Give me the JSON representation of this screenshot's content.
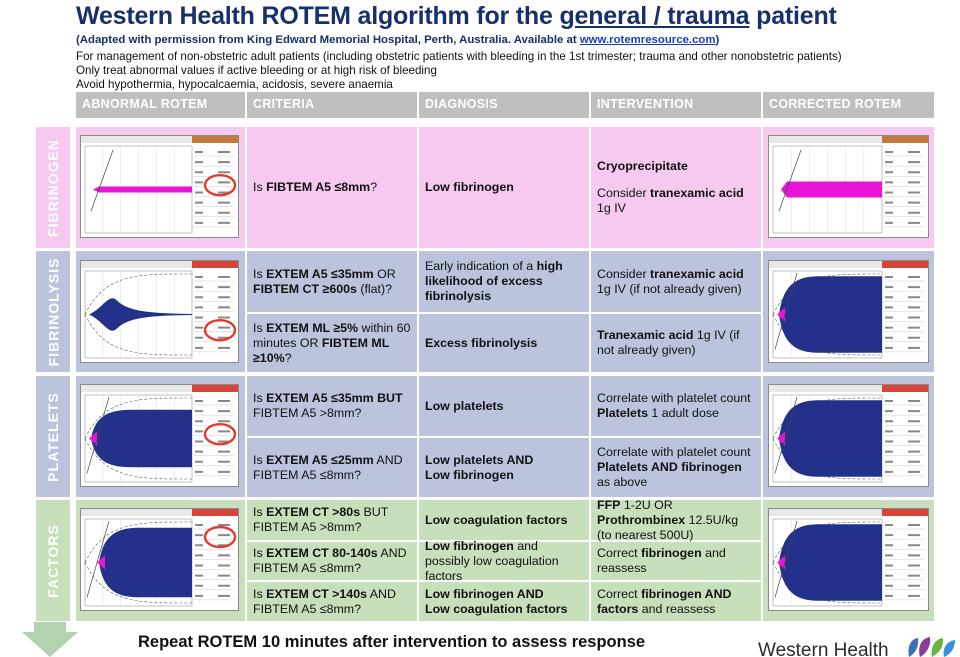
{
  "header": {
    "title_pre": "Western Health ROTEM algorithm for the ",
    "title_link": "general / trauma",
    "title_post": " patient",
    "subtitle_text": "(Adapted with permission from King Edward Memorial Hospital, Perth, Australia. Available at ",
    "subtitle_link": "www.rotemresource.com",
    "subtitle_close": ")",
    "notes": [
      "For management of non-obstetric adult patients (including obstetric patients with bleeding in the 1st trimester; trauma and other nonobstetric patients)",
      "Only treat abnormal values if active bleeding or at high risk of bleeding",
      "Avoid hypothermia, hypocalcaemia, acidosis, severe anaemia"
    ]
  },
  "columns": [
    "ABNORMAL ROTEM",
    "CRITERIA",
    "DIAGNOSIS",
    "INTERVENTION",
    "CORRECTED ROTEM"
  ],
  "sections": {
    "fibrinogen": {
      "label": "FIBRINOGEN",
      "rows": [
        {
          "criteria": [
            "Is ",
            "FIBTEM A5 ≤8mm",
            "?"
          ],
          "diagnosis": [
            "Low fibrinogen"
          ],
          "intervention_1": "Cryoprecipitate",
          "intervention_2": [
            "Consider ",
            "tranexamic acid",
            " 1g IV"
          ]
        }
      ]
    },
    "fibrinolysis": {
      "label": "FIBRINOLYSIS",
      "rows": [
        {
          "criteria": [
            "Is ",
            "EXTEM A5 ≤35mm",
            " OR ",
            "FIBTEM CT ≥600s",
            " (flat)?"
          ],
          "diagnosis": [
            "Early indication of a ",
            "high likelihood of excess fibrinolysis"
          ],
          "intervention": [
            "Consider ",
            "tranexamic acid",
            " 1g IV (if not already given)"
          ]
        },
        {
          "criteria": [
            "Is ",
            "EXTEM ML ≥5%",
            " within 60 minutes OR ",
            "FIBTEM ML ≥10%",
            "?"
          ],
          "diagnosis": [
            "Excess fibrinolysis"
          ],
          "intervention": [
            "Tranexamic acid",
            " 1g IV (if not already given)"
          ]
        }
      ]
    },
    "platelets": {
      "label": "PLATELETS",
      "rows": [
        {
          "criteria": [
            "Is ",
            "EXTEM A5 ≤35mm BUT",
            " FIBTEM A5 >8mm?"
          ],
          "diagnosis": [
            "Low platelets"
          ],
          "intervention_1": "Correlate with platelet count",
          "intervention_2": [
            "Platelets",
            " 1 adult dose"
          ]
        },
        {
          "criteria": [
            "Is ",
            "EXTEM A5 ≤25mm",
            " AND FIBTEM A5 ≤8mm?"
          ],
          "diagnosis_1": "Low platelets AND",
          "diagnosis_2": "Low fibrinogen",
          "intervention_1": "Correlate with platelet count",
          "intervention_2": [
            "Platelets AND fibrinogen",
            " as above"
          ]
        }
      ]
    },
    "factors": {
      "label": "FACTORS",
      "rows": [
        {
          "criteria": [
            "Is ",
            "EXTEM CT >80s",
            " BUT FIBTEM A5 >8mm?"
          ],
          "diagnosis": [
            "Low coagulation factors"
          ],
          "intervention": [
            "FFP",
            " 1-2U OR ",
            "Prothrombinex",
            " 12.5U/kg (to nearest 500U)"
          ]
        },
        {
          "criteria": [
            "Is ",
            "EXTEM CT 80-140s",
            " AND FIBTEM A5 ≤8mm?"
          ],
          "diagnosis": [
            "Low fibrinogen",
            " and possibly low coagulation factors"
          ],
          "intervention": [
            "Correct ",
            "fibrinogen",
            " and reassess"
          ]
        },
        {
          "criteria": [
            "Is ",
            "EXTEM CT >140s",
            " AND FIBTEM A5 ≤8mm?"
          ],
          "diagnosis_1": "Low fibrinogen AND",
          "diagnosis_2": "Low coagulation factors",
          "intervention": [
            "Correct ",
            "fibrinogen AND factors",
            " and reassess"
          ]
        }
      ]
    }
  },
  "footer": {
    "text": "Repeat ROTEM 10 minutes after intervention to assess response",
    "logo_text": "Western Health"
  },
  "colors": {
    "title": "#16306b",
    "fibrinogen": "#f6c9f1",
    "fibrinolysis": "#bcc4dd",
    "platelets": "#bcc4dd",
    "factors": "#c8dfbc",
    "trace_blue": "#23318a",
    "trace_pink": "#e815d8",
    "circle_red": "#e03b2e"
  }
}
